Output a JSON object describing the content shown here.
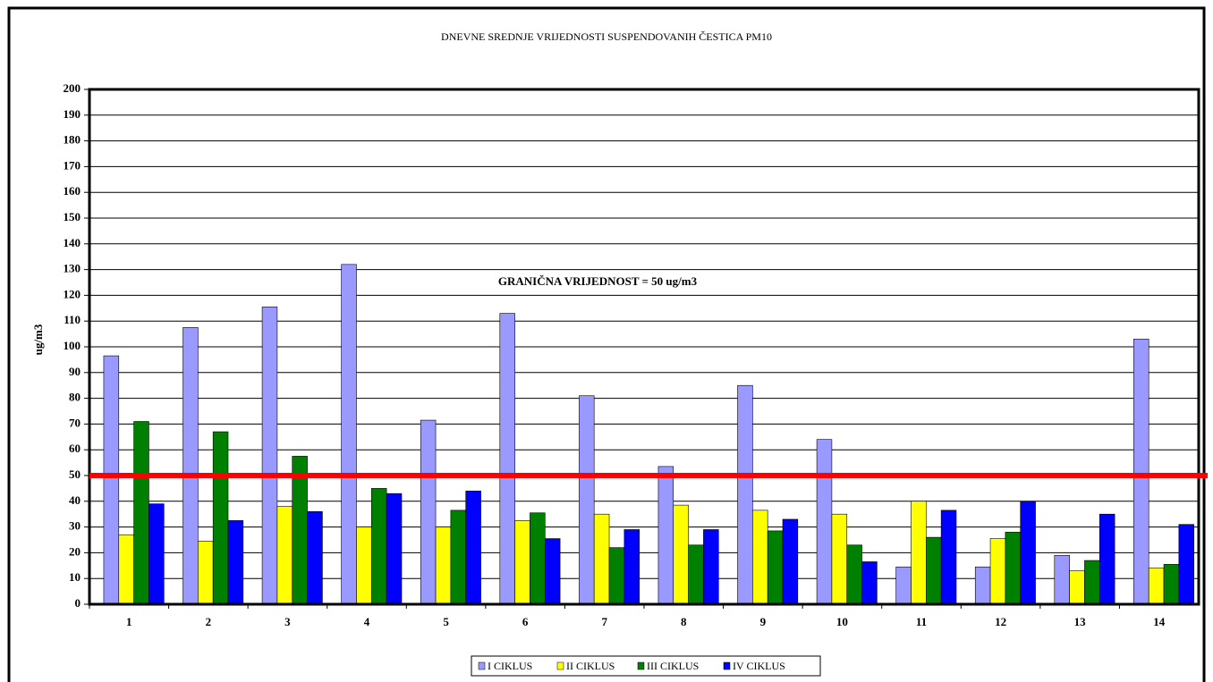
{
  "chart_data": {
    "type": "bar",
    "title": "DNEVNE SREDNJE VRIJEDNOSTI SUSPENDOVANIH ČESTICA PM10",
    "y_label": "ug/m3",
    "annotation": "GRANIČNA VRIJEDNOST = 50 ug/m3",
    "threshold": 50,
    "threshold_color": "#ff0000",
    "categories": [
      "1",
      "2",
      "3",
      "4",
      "5",
      "6",
      "7",
      "8",
      "9",
      "10",
      "11",
      "12",
      "13",
      "14"
    ],
    "series": [
      {
        "name": "I CIKLUS",
        "color": "#9999ff",
        "values": [
          96.5,
          107.5,
          115.5,
          132,
          71.5,
          113,
          81,
          53.5,
          85,
          64,
          14.5,
          14.5,
          19,
          103
        ]
      },
      {
        "name": "II CIKLUS",
        "color": "#ffff00",
        "values": [
          27,
          24.5,
          38,
          30,
          30,
          32.5,
          35,
          38.5,
          36.5,
          35,
          40,
          25.5,
          13,
          14
        ]
      },
      {
        "name": "III CIKLUS",
        "color": "#008000",
        "values": [
          71,
          67,
          57.5,
          45,
          36.5,
          35.5,
          22,
          23,
          28.5,
          23,
          26,
          28,
          17,
          15.5
        ]
      },
      {
        "name": "IV CIKLUS",
        "color": "#0000ff",
        "values": [
          39,
          32.5,
          36,
          43,
          44,
          25.5,
          29,
          29,
          33,
          16.5,
          36.5,
          40,
          35,
          31
        ]
      }
    ],
    "ylim": [
      0,
      200
    ],
    "yticks": [
      0,
      10,
      20,
      30,
      40,
      50,
      60,
      70,
      80,
      90,
      100,
      110,
      120,
      130,
      140,
      150,
      160,
      170,
      180,
      190,
      200
    ],
    "grid": true,
    "legend": "bottom"
  }
}
